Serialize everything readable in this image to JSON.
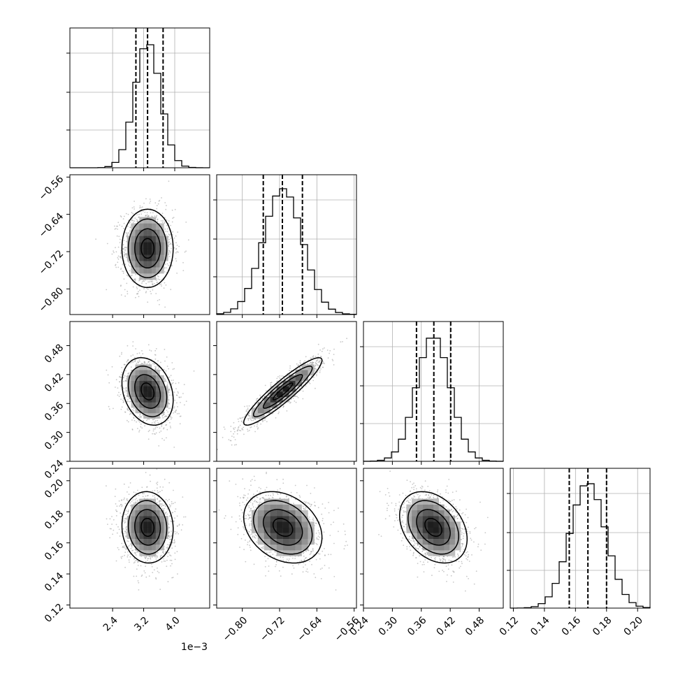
{
  "chart_data": {
    "type": "corner",
    "scale_note": "1e−3",
    "parameters": [
      {
        "range": [
          1.3,
          4.9
        ],
        "ticks": [
          2.4,
          3.2,
          4.0
        ],
        "tick_labels": [
          "2.4",
          "3.2",
          "4.0"
        ],
        "hist": {
          "mean": 3.3,
          "sd": 0.33
        },
        "quantiles": [
          3.0,
          3.3,
          3.7
        ]
      },
      {
        "range": [
          -0.855,
          -0.555
        ],
        "ticks": [
          -0.8,
          -0.72,
          -0.64,
          -0.56
        ],
        "tick_labels": [
          "−0.80",
          "−0.72",
          "−0.64",
          "−0.56"
        ],
        "hist": {
          "mean": -0.713,
          "sd": 0.042
        },
        "quantiles": [
          -0.755,
          -0.714,
          -0.671
        ]
      },
      {
        "range": [
          0.24,
          0.53
        ],
        "ticks": [
          0.24,
          0.3,
          0.36,
          0.42,
          0.48
        ],
        "tick_labels": [
          "0.24",
          "0.30",
          "0.36",
          "0.42",
          "0.48"
        ],
        "hist": {
          "mean": 0.385,
          "sd": 0.035
        },
        "quantiles": [
          0.35,
          0.386,
          0.421
        ]
      },
      {
        "range": [
          0.118,
          0.208
        ],
        "ticks": [
          0.12,
          0.14,
          0.16,
          0.18,
          0.2
        ],
        "tick_labels": [
          "0.12",
          "0.14",
          "0.16",
          "0.18",
          "0.20"
        ],
        "hist": {
          "mean": 0.168,
          "sd": 0.0115
        },
        "quantiles": [
          0.156,
          0.168,
          0.18
        ]
      }
    ],
    "pairs": [
      {
        "x": 0,
        "y": 1,
        "cx": 3.3,
        "cy": -0.713,
        "corr": 0.0
      },
      {
        "x": 0,
        "y": 2,
        "cx": 3.3,
        "cy": 0.385,
        "corr": -0.25
      },
      {
        "x": 1,
        "y": 2,
        "cx": -0.713,
        "cy": 0.385,
        "corr": 0.92
      },
      {
        "x": 0,
        "y": 3,
        "cx": 3.3,
        "cy": 0.17,
        "corr": -0.05
      },
      {
        "x": 1,
        "y": 3,
        "cx": -0.713,
        "cy": 0.17,
        "corr": -0.28
      },
      {
        "x": 2,
        "y": 3,
        "cx": 0.385,
        "cy": 0.17,
        "corr": -0.33
      }
    ],
    "contour_levels_sigma": [
      0.5,
      1.0,
      1.5,
      2.0
    ],
    "grid": true
  }
}
